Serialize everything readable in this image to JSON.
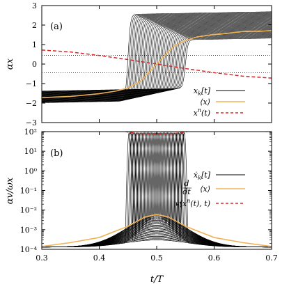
{
  "chart_data": [
    {
      "id": "a",
      "type": "line",
      "panel_label": "(a)",
      "ylabel": "αx",
      "xlim": [
        0.3,
        0.7
      ],
      "ylim": [
        -3,
        3
      ],
      "x_ticks": [
        0.3,
        0.4,
        0.5,
        0.6,
        0.7
      ],
      "y_ticks": [
        -3,
        -2,
        -1,
        0,
        1,
        2,
        3
      ],
      "x_tick_labels_shown": false,
      "reference_lines": [
        0.45,
        -0.45
      ],
      "grid": false,
      "legend_position": "bottom-right",
      "series": [
        {
          "name": "x_k[t]",
          "color": "#000000",
          "style": "solid",
          "kind": "trajectory-ensemble",
          "description_values": {
            "count": 40,
            "left_values": [
              -1.9,
              -1.25
            ],
            "right_values": [
              1.25,
              2.55
            ],
            "switch_times": [
              0.45,
              0.55
            ]
          }
        },
        {
          "name": "⟨x⟩",
          "color": "#f0b255",
          "style": "solid",
          "x": [
            0.3,
            0.35,
            0.4,
            0.43,
            0.45,
            0.47,
            0.49,
            0.5,
            0.51,
            0.53,
            0.55,
            0.57,
            0.6,
            0.65,
            0.7
          ],
          "y": [
            -1.72,
            -1.66,
            -1.52,
            -1.38,
            -1.22,
            -0.92,
            -0.32,
            0.0,
            0.32,
            0.92,
            1.22,
            1.38,
            1.52,
            1.66,
            1.72
          ]
        },
        {
          "name": "x^n(t)",
          "color": "#d62828",
          "style": "dashed",
          "x": [
            0.3,
            0.35,
            0.4,
            0.45,
            0.5,
            0.55,
            0.6,
            0.65,
            0.7
          ],
          "y": [
            0.72,
            0.62,
            0.44,
            0.23,
            0.0,
            -0.23,
            -0.44,
            -0.62,
            -0.72
          ]
        }
      ]
    },
    {
      "id": "b",
      "type": "line",
      "panel_label": "(b)",
      "xlabel": "t/T",
      "ylabel": "αv/ωx",
      "yscale": "log",
      "xlim": [
        0.3,
        0.7
      ],
      "ylim": [
        0.0001,
        100
      ],
      "x_ticks": [
        0.3,
        0.4,
        0.5,
        0.6,
        0.7
      ],
      "x_tick_labels": [
        "0.3",
        "0.4",
        "0.5",
        "0.6",
        "0.7"
      ],
      "y_ticks": [
        0.0001,
        0.001,
        0.01,
        0.1,
        1,
        10,
        100
      ],
      "y_tick_labels": [
        "10⁻⁴",
        "10⁻³",
        "10⁻²",
        "10⁻¹",
        "10⁰",
        "10¹",
        "10²"
      ],
      "grid": false,
      "legend_position": "right",
      "series": [
        {
          "name": "ẋ_k[t]",
          "color": "#000000",
          "style": "solid",
          "kind": "velocity-ensemble",
          "description_values": {
            "count": 40,
            "base_at_edges": 0.00013,
            "peak_range": [
              0.0003,
              0.005
            ],
            "spike_top": 90
          }
        },
        {
          "name": "d/dt ⟨x⟩",
          "color": "#f0b255",
          "style": "solid",
          "x": [
            0.3,
            0.35,
            0.4,
            0.45,
            0.48,
            0.5,
            0.52,
            0.55,
            0.6,
            0.65,
            0.7
          ],
          "y": [
            0.00014,
            0.00022,
            0.0004,
            0.0015,
            0.0045,
            0.006,
            0.0045,
            0.0015,
            0.0004,
            0.00022,
            0.00014
          ]
        },
        {
          "name": "v(x^n(t),t)",
          "color": "#d62828",
          "style": "dashed",
          "x": [
            0.3,
            0.33,
            0.36,
            0.4,
            0.43,
            0.45,
            0.47,
            0.5,
            0.53,
            0.55,
            0.57,
            0.6,
            0.64,
            0.67,
            0.7
          ],
          "y": [
            95,
            115,
            135,
            150,
            130,
            95,
            80,
            78,
            80,
            95,
            130,
            150,
            135,
            115,
            95
          ]
        }
      ]
    }
  ],
  "legend_a": {
    "item1": "x",
    "item1_sub": "k",
    "item1_tail": "[t]",
    "item2": "⟨x⟩",
    "item3": "x",
    "item3_sup": "n",
    "item3_tail": "(t)"
  },
  "legend_b": {
    "item1": "ẋ",
    "item1_sub": "k",
    "item1_tail": "[t]",
    "item2_num": "d",
    "item2_den": "dt",
    "item2_tail": "⟨x⟩",
    "item3": "v(x",
    "item3_sup": "n",
    "item3_tail": "(t), t)"
  }
}
